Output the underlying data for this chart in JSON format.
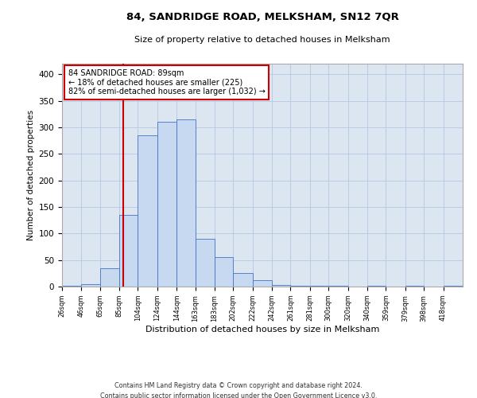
{
  "title": "84, SANDRIDGE ROAD, MELKSHAM, SN12 7QR",
  "subtitle": "Size of property relative to detached houses in Melksham",
  "xlabel": "Distribution of detached houses by size in Melksham",
  "ylabel": "Number of detached properties",
  "bar_color": "#c6d9f0",
  "bar_edge_color": "#4472c4",
  "grid_color": "#b8cce4",
  "bg_color": "#dce6f1",
  "annotation_text": "84 SANDRIDGE ROAD: 89sqm\n← 18% of detached houses are smaller (225)\n82% of semi-detached houses are larger (1,032) →",
  "vline_x": 89,
  "vline_color": "#cc0000",
  "bins": [
    26,
    46,
    65,
    85,
    104,
    124,
    144,
    163,
    183,
    202,
    222,
    242,
    261,
    281,
    300,
    320,
    340,
    359,
    379,
    398,
    418
  ],
  "counts": [
    2,
    5,
    35,
    135,
    285,
    310,
    315,
    90,
    55,
    25,
    12,
    3,
    2,
    1,
    1,
    0,
    1,
    0,
    1,
    0,
    1
  ],
  "footer_line1": "Contains HM Land Registry data © Crown copyright and database right 2024.",
  "footer_line2": "Contains public sector information licensed under the Open Government Licence v3.0.",
  "ylim": [
    0,
    420
  ],
  "yticks": [
    0,
    50,
    100,
    150,
    200,
    250,
    300,
    350,
    400
  ]
}
